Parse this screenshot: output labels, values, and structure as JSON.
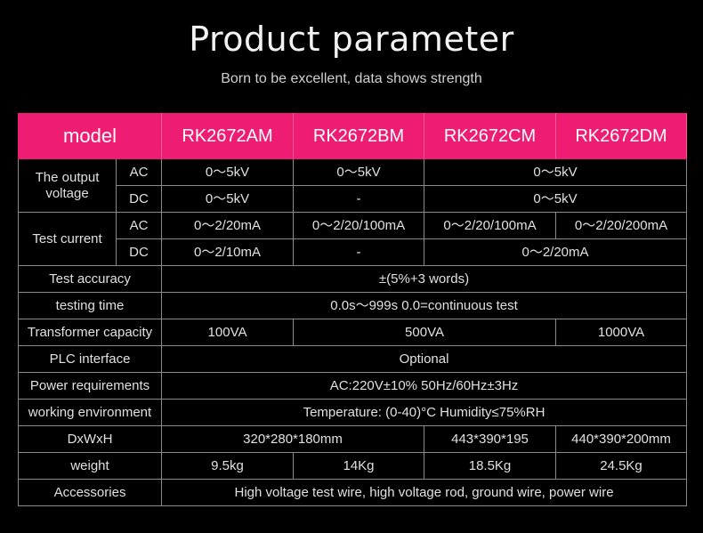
{
  "header": {
    "title": "Product parameter",
    "subtitle": "Born to be excellent, data shows strength"
  },
  "table": {
    "model_label": "model",
    "models": [
      "RK2672AM",
      "RK2672BM",
      "RK2672CM",
      "RK2672DM"
    ],
    "output_voltage": {
      "label": "The output voltage",
      "ac": {
        "label": "AC",
        "a": "0～5kV",
        "b": "0～5kV",
        "cd": "0～5kV"
      },
      "dc": {
        "label": "DC",
        "a": "0～5kV",
        "b": "-",
        "cd": "0～5kV"
      }
    },
    "test_current": {
      "label": "Test current",
      "ac": {
        "label": "AC",
        "a": "0～2/20mA",
        "b": "0～2/20/100mA",
        "c": "0～2/20/100mA",
        "d": "0～2/20/200mA"
      },
      "dc": {
        "label": "DC",
        "a": "0～2/10mA",
        "b": "-",
        "cd": "0～2/20mA"
      }
    },
    "test_accuracy": {
      "label": "Test accuracy",
      "value": "±(5%+3 words)"
    },
    "testing_time": {
      "label": "testing time",
      "value": "0.0s～999s 0.0=continuous test"
    },
    "transformer_capacity": {
      "label": "Transformer capacity",
      "a": "100VA",
      "bc": "500VA",
      "d": "1000VA"
    },
    "plc_interface": {
      "label": "PLC interface",
      "value": "Optional"
    },
    "power_requirements": {
      "label": "Power requirements",
      "value": "AC:220V±10% 50Hz/60Hz±3Hz"
    },
    "working_environment": {
      "label": "working environment",
      "value": "Temperature: (0-40)°C Humidity≤75%RH"
    },
    "dimensions": {
      "label": "DxWxH",
      "ab": "320*280*180mm",
      "c": "443*390*195",
      "d": "440*390*200mm"
    },
    "weight": {
      "label": "weight",
      "a": "9.5kg",
      "b": "14Kg",
      "c": "18.5Kg",
      "d": "24.5Kg"
    },
    "accessories": {
      "label": "Accessories",
      "value": "High voltage test wire, high voltage rod, ground wire, power wire"
    }
  }
}
